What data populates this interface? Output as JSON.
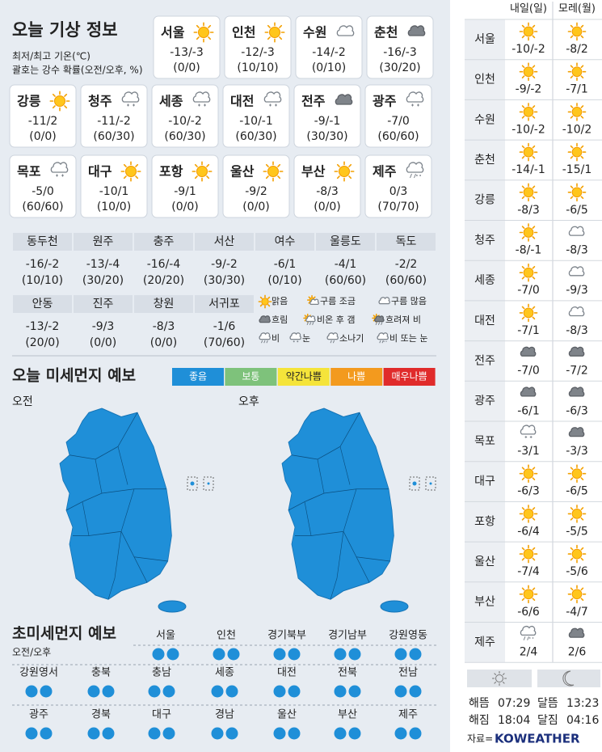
{
  "header": {
    "title": "오늘 기상 정보",
    "notes": [
      "최저/최고 기온(℃)",
      "괄호는 강수 확률(오전/오후, %)"
    ]
  },
  "cards": [
    {
      "name": "서울",
      "icon": "sun",
      "temp": "-13/-3",
      "pop": "(0/0)"
    },
    {
      "name": "인천",
      "icon": "sun",
      "temp": "-12/-3",
      "pop": "(10/10)"
    },
    {
      "name": "수원",
      "icon": "cloud",
      "temp": "-14/-2",
      "pop": "(0/10)"
    },
    {
      "name": "춘천",
      "icon": "overcast",
      "temp": "-16/-3",
      "pop": "(30/20)"
    },
    {
      "name": "강릉",
      "icon": "sun",
      "temp": "-11/2",
      "pop": "(0/0)"
    },
    {
      "name": "청주",
      "icon": "snow",
      "temp": "-11/-2",
      "pop": "(60/30)"
    },
    {
      "name": "세종",
      "icon": "snow",
      "temp": "-10/-2",
      "pop": "(60/30)"
    },
    {
      "name": "대전",
      "icon": "snow",
      "temp": "-10/-1",
      "pop": "(60/30)"
    },
    {
      "name": "전주",
      "icon": "overcast",
      "temp": "-9/-1",
      "pop": "(30/30)"
    },
    {
      "name": "광주",
      "icon": "snow",
      "temp": "-7/0",
      "pop": "(60/60)"
    },
    {
      "name": "목포",
      "icon": "snow",
      "temp": "-5/0",
      "pop": "(60/60)"
    },
    {
      "name": "대구",
      "icon": "sun",
      "temp": "-10/1",
      "pop": "(10/0)"
    },
    {
      "name": "포항",
      "icon": "sun",
      "temp": "-9/1",
      "pop": "(0/0)"
    },
    {
      "name": "울산",
      "icon": "sun",
      "temp": "-9/2",
      "pop": "(0/0)"
    },
    {
      "name": "부산",
      "icon": "sun",
      "temp": "-8/3",
      "pop": "(0/0)"
    },
    {
      "name": "제주",
      "icon": "rainsnow",
      "temp": "0/3",
      "pop": "(70/70)"
    }
  ],
  "table": {
    "rows": [
      [
        {
          "name": "동두천",
          "temp": "-16/-2",
          "pop": "(10/10)"
        },
        {
          "name": "원주",
          "temp": "-13/-4",
          "pop": "(30/20)"
        },
        {
          "name": "충주",
          "temp": "-16/-4",
          "pop": "(20/20)"
        },
        {
          "name": "서산",
          "temp": "-9/-2",
          "pop": "(30/30)"
        },
        {
          "name": "여수",
          "temp": "-6/1",
          "pop": "(0/10)"
        },
        {
          "name": "울릉도",
          "temp": "-4/1",
          "pop": "(60/60)"
        },
        {
          "name": "독도",
          "temp": "-2/2",
          "pop": "(60/60)"
        }
      ],
      [
        {
          "name": "안동",
          "temp": "-13/-2",
          "pop": "(20/0)"
        },
        {
          "name": "진주",
          "temp": "-9/3",
          "pop": "(0/0)"
        },
        {
          "name": "창원",
          "temp": "-8/3",
          "pop": "(0/0)"
        },
        {
          "name": "서귀포",
          "temp": "-1/6",
          "pop": "(70/60)"
        }
      ]
    ]
  },
  "legend": [
    {
      "label": "맑음",
      "icon": "sun"
    },
    {
      "label": "구름 조금",
      "icon": "partly"
    },
    {
      "label": "구름 많음",
      "icon": "cloud"
    },
    {
      "label": "흐림",
      "icon": "overcast"
    },
    {
      "label": "비온 후 갬",
      "icon": "rainclear"
    },
    {
      "label": "흐려져 비",
      "icon": "sunrain"
    },
    {
      "label": "비",
      "icon": "rain"
    },
    {
      "label": "눈",
      "icon": "snow"
    },
    {
      "label": "소나기",
      "icon": "shower"
    },
    {
      "label": "비 또는 눈",
      "icon": "rainsnow"
    }
  ],
  "dust": {
    "title": "오늘 미세먼지 예보",
    "levels": [
      {
        "label": "좋음",
        "color": "#1f8fd8"
      },
      {
        "label": "보통",
        "color": "#7ec27b"
      },
      {
        "label": "약간나쁨",
        "color": "#f5e43a"
      },
      {
        "label": "나쁨",
        "color": "#f39a1e"
      },
      {
        "label": "매우나쁨",
        "color": "#e02b2b"
      }
    ],
    "maps": [
      {
        "label": "오전",
        "grade": "좋음"
      },
      {
        "label": "오후",
        "grade": "좋음"
      }
    ]
  },
  "fine_dust": {
    "title": "초미세먼지 예보",
    "subtitle": "오전/오후",
    "regions": [
      {
        "name": "서울",
        "grade": [
          "좋음",
          "좋음"
        ]
      },
      {
        "name": "인천",
        "grade": [
          "좋음",
          "좋음"
        ]
      },
      {
        "name": "경기북부",
        "grade": [
          "좋음",
          "좋음"
        ]
      },
      {
        "name": "경기남부",
        "grade": [
          "좋음",
          "좋음"
        ]
      },
      {
        "name": "강원영동",
        "grade": [
          "좋음",
          "좋음"
        ]
      },
      {
        "name": "강원영서",
        "grade": [
          "좋음",
          "좋음"
        ]
      },
      {
        "name": "충북",
        "grade": [
          "좋음",
          "좋음"
        ]
      },
      {
        "name": "충남",
        "grade": [
          "좋음",
          "좋음"
        ]
      },
      {
        "name": "세종",
        "grade": [
          "좋음",
          "좋음"
        ]
      },
      {
        "name": "대전",
        "grade": [
          "좋음",
          "좋음"
        ]
      },
      {
        "name": "전북",
        "grade": [
          "좋음",
          "좋음"
        ]
      },
      {
        "name": "전남",
        "grade": [
          "좋음",
          "좋음"
        ]
      },
      {
        "name": "광주",
        "grade": [
          "좋음",
          "좋음"
        ]
      },
      {
        "name": "경북",
        "grade": [
          "좋음",
          "좋음"
        ]
      },
      {
        "name": "대구",
        "grade": [
          "좋음",
          "좋음"
        ]
      },
      {
        "name": "경남",
        "grade": [
          "좋음",
          "좋음"
        ]
      },
      {
        "name": "울산",
        "grade": [
          "좋음",
          "좋음"
        ]
      },
      {
        "name": "부산",
        "grade": [
          "좋음",
          "좋음"
        ]
      },
      {
        "name": "제주",
        "grade": [
          "좋음",
          "좋음"
        ]
      }
    ]
  },
  "forecast": {
    "columns": [
      "내일(일)",
      "모레(월)"
    ],
    "rows": [
      {
        "city": "서울",
        "days": [
          {
            "icon": "sun",
            "temp": "-10/-2"
          },
          {
            "icon": "sun",
            "temp": "-8/2"
          }
        ]
      },
      {
        "city": "인천",
        "days": [
          {
            "icon": "sun",
            "temp": "-9/-2"
          },
          {
            "icon": "sun",
            "temp": "-7/1"
          }
        ]
      },
      {
        "city": "수원",
        "days": [
          {
            "icon": "sun",
            "temp": "-10/-2"
          },
          {
            "icon": "sun",
            "temp": "-10/2"
          }
        ]
      },
      {
        "city": "춘천",
        "days": [
          {
            "icon": "sun",
            "temp": "-14/-1"
          },
          {
            "icon": "sun",
            "temp": "-15/1"
          }
        ]
      },
      {
        "city": "강릉",
        "days": [
          {
            "icon": "sun",
            "temp": "-8/3"
          },
          {
            "icon": "sun",
            "temp": "-6/5"
          }
        ]
      },
      {
        "city": "청주",
        "days": [
          {
            "icon": "sun",
            "temp": "-8/-1"
          },
          {
            "icon": "cloud",
            "temp": "-8/3"
          }
        ]
      },
      {
        "city": "세종",
        "days": [
          {
            "icon": "sun",
            "temp": "-7/0"
          },
          {
            "icon": "cloud",
            "temp": "-9/3"
          }
        ]
      },
      {
        "city": "대전",
        "days": [
          {
            "icon": "sun",
            "temp": "-7/1"
          },
          {
            "icon": "cloud",
            "temp": "-8/3"
          }
        ]
      },
      {
        "city": "전주",
        "days": [
          {
            "icon": "overcast",
            "temp": "-7/0"
          },
          {
            "icon": "overcast",
            "temp": "-7/2"
          }
        ]
      },
      {
        "city": "광주",
        "days": [
          {
            "icon": "overcast",
            "temp": "-6/1"
          },
          {
            "icon": "overcast",
            "temp": "-6/3"
          }
        ]
      },
      {
        "city": "목포",
        "days": [
          {
            "icon": "snow",
            "temp": "-3/1"
          },
          {
            "icon": "overcast",
            "temp": "-3/3"
          }
        ]
      },
      {
        "city": "대구",
        "days": [
          {
            "icon": "sun",
            "temp": "-6/3"
          },
          {
            "icon": "sun",
            "temp": "-6/5"
          }
        ]
      },
      {
        "city": "포항",
        "days": [
          {
            "icon": "sun",
            "temp": "-6/4"
          },
          {
            "icon": "sun",
            "temp": "-5/5"
          }
        ]
      },
      {
        "city": "울산",
        "days": [
          {
            "icon": "sun",
            "temp": "-7/4"
          },
          {
            "icon": "sun",
            "temp": "-5/6"
          }
        ]
      },
      {
        "city": "부산",
        "days": [
          {
            "icon": "sun",
            "temp": "-6/6"
          },
          {
            "icon": "sun",
            "temp": "-4/7"
          }
        ]
      },
      {
        "city": "제주",
        "days": [
          {
            "icon": "rainsnow",
            "temp": "2/4"
          },
          {
            "icon": "overcast",
            "temp": "2/6"
          }
        ]
      }
    ]
  },
  "astro": [
    {
      "label": "해뜸",
      "time": "07:29"
    },
    {
      "label": "해짐",
      "time": "18:04"
    },
    {
      "label": "달뜸",
      "time": "13:23"
    },
    {
      "label": "달짐",
      "time": "04:16"
    }
  ],
  "source": {
    "label": "자료=",
    "brand": "KOWEATHER"
  }
}
